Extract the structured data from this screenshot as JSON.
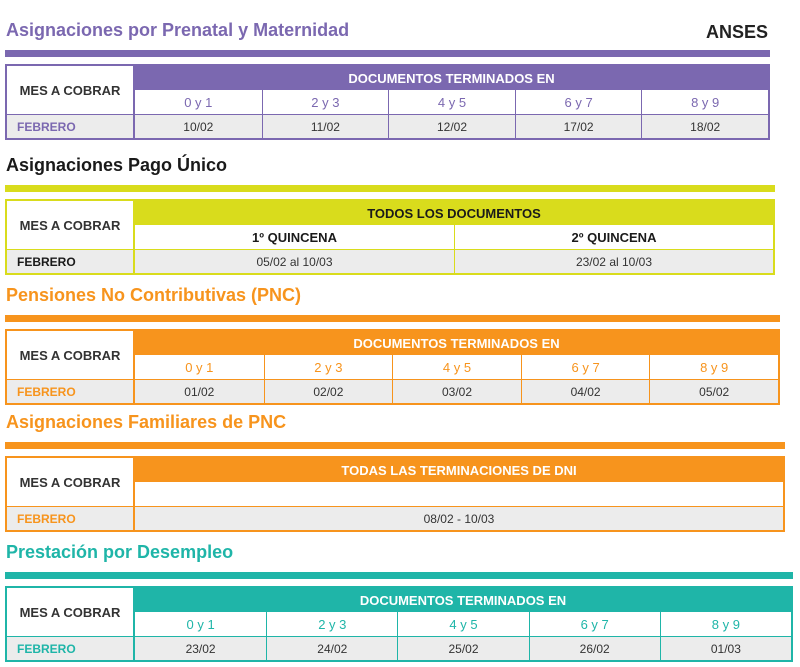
{
  "brand": "ANSES",
  "sections": [
    {
      "title": "Asignaciones por Prenatal y Maternidad",
      "color": "#7b68b0",
      "title_color": "#7b68b0",
      "header_text_color": "#ffffff",
      "table": {
        "corner": "MES A COBRAR",
        "group": "DOCUMENTOS TERMINADOS EN",
        "columns": [
          "0 y 1",
          "2 y 3",
          "4 y 5",
          "6 y 7",
          "8 y 9"
        ],
        "month": "FEBRERO",
        "values": [
          "10/02",
          "11/02",
          "12/02",
          "17/02",
          "18/02"
        ]
      }
    },
    {
      "title": "Asignaciones Pago Único",
      "color": "#d9dc1c",
      "title_color": "#1a1a1a",
      "header_text_color": "#1a1a1a",
      "table": {
        "corner": "MES A COBRAR",
        "group": "TODOS LOS DOCUMENTOS",
        "columns": [
          "1º QUINCENA",
          "2º QUINCENA"
        ],
        "month": "FEBRERO",
        "values": [
          "05/02 al 10/03",
          "23/02 al 10/03"
        ]
      }
    },
    {
      "title": "Pensiones No Contributivas (PNC)",
      "color": "#f7941d",
      "title_color": "#f7941d",
      "header_text_color": "#ffffff",
      "table": {
        "corner": "MES A COBRAR",
        "group": "DOCUMENTOS TERMINADOS EN",
        "columns": [
          "0 y 1",
          "2 y 3",
          "4 y 5",
          "6 y 7",
          "8 y 9"
        ],
        "month": "FEBRERO",
        "values": [
          "01/02",
          "02/02",
          "03/02",
          "04/02",
          "05/02"
        ]
      }
    },
    {
      "title": "Asignaciones Familiares de PNC",
      "color": "#f7941d",
      "title_color": "#f7941d",
      "header_text_color": "#ffffff",
      "table": {
        "corner": "MES A COBRAR",
        "group": "TODAS LAS TERMINACIONES DE DNI",
        "columns": [],
        "month": "FEBRERO",
        "values": [
          "08/02 - 10/03"
        ]
      }
    },
    {
      "title": "Prestación por Desempleo",
      "color": "#1fb5a8",
      "title_color": "#1fb5a8",
      "header_text_color": "#ffffff",
      "table": {
        "corner": "MES A COBRAR",
        "group": "DOCUMENTOS TERMINADOS EN",
        "columns": [
          "0 y 1",
          "2 y 3",
          "4 y 5",
          "6 y 7",
          "8 y 9"
        ],
        "month": "FEBRERO",
        "values": [
          "23/02",
          "24/02",
          "25/02",
          "26/02",
          "01/03"
        ]
      }
    }
  ]
}
